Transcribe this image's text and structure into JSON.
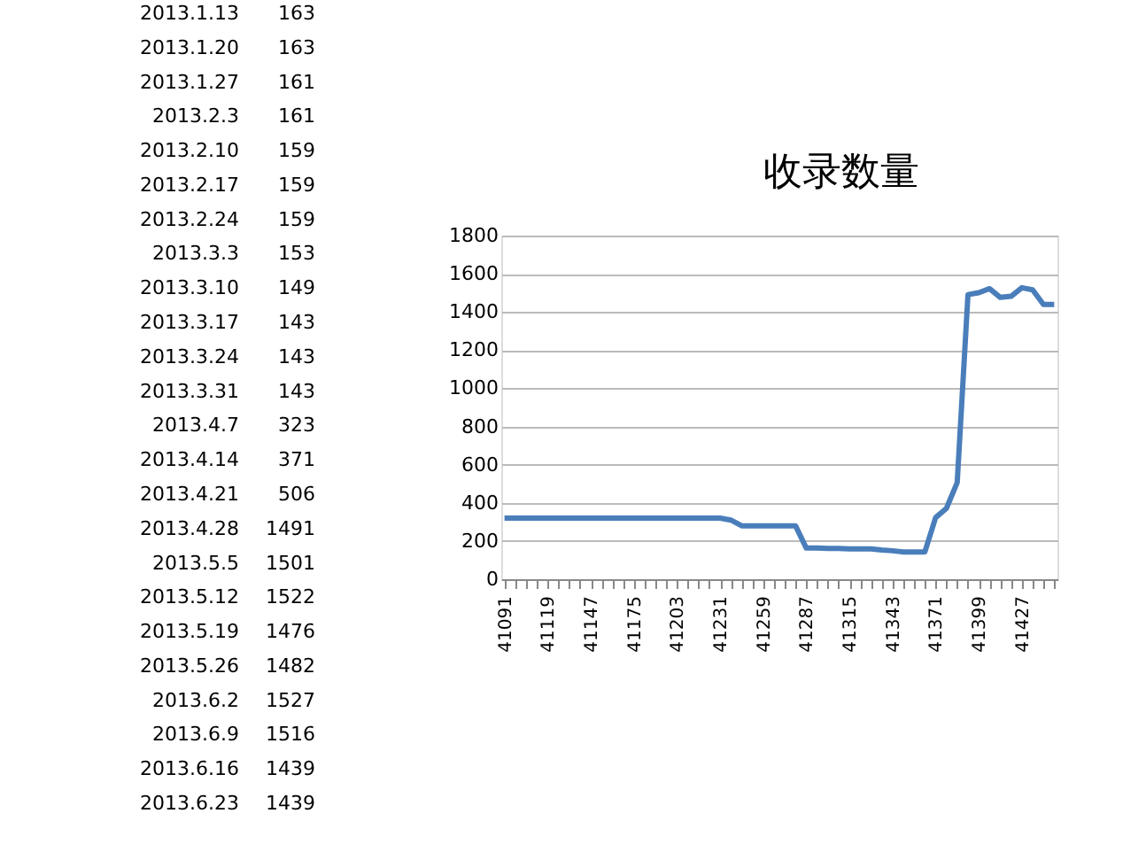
{
  "chart_data": {
    "type": "line",
    "title": "收录数量",
    "categories": [
      "41091",
      null,
      null,
      null,
      "41119",
      null,
      null,
      null,
      "41147",
      null,
      null,
      null,
      "41175",
      null,
      null,
      null,
      "41203",
      null,
      null,
      null,
      "41231",
      null,
      null,
      null,
      "41259",
      null,
      null,
      null,
      "41287",
      null,
      null,
      null,
      "41315",
      null,
      null,
      null,
      "41343",
      null,
      null,
      null,
      "41371",
      null,
      null,
      null,
      "41399",
      null,
      null,
      null,
      "41427",
      null,
      null,
      null
    ],
    "series": [
      {
        "color": "#4a7ebb",
        "values": [
          320,
          320,
          320,
          320,
          320,
          320,
          320,
          320,
          320,
          320,
          320,
          320,
          320,
          320,
          320,
          320,
          320,
          320,
          320,
          320,
          320,
          310,
          280,
          280,
          280,
          280,
          280,
          280,
          163,
          163,
          161,
          161,
          159,
          159,
          159,
          153,
          149,
          143,
          143,
          143,
          323,
          371,
          506,
          1491,
          1501,
          1522,
          1476,
          1482,
          1527,
          1516,
          1439,
          1439
        ]
      }
    ],
    "ylim": [
      0,
      1800
    ],
    "yticks": [
      0,
      200,
      400,
      600,
      800,
      1000,
      1200,
      1400,
      1600,
      1800
    ],
    "grid": "y",
    "marker": "none",
    "line_style": "solid",
    "annotations": [
      "2013.1.13",
      "163",
      "2013.1.20",
      "163",
      "2013.1.27",
      "161",
      "2013.2.3",
      "161",
      "2013.2.10",
      "159",
      "2013.2.17",
      "159",
      "2013.2.24",
      "159",
      "2013.3.3",
      "153",
      "2013.3.10",
      "149",
      "2013.3.17",
      "143",
      "2013.3.24",
      "143",
      "2013.3.31",
      "143",
      "2013.4.7",
      "323",
      "2013.4.14",
      "371",
      "2013.4.21",
      "506",
      "2013.4.28",
      "1491",
      "2013.5.5",
      "1501",
      "2013.5.12",
      "1522",
      "2013.5.19",
      "1476",
      "2013.5.26",
      "1482",
      "2013.6.2",
      "1527",
      "2013.6.9",
      "1516",
      "2013.6.16",
      "1439",
      "2013.6.23",
      "1439"
    ]
  }
}
